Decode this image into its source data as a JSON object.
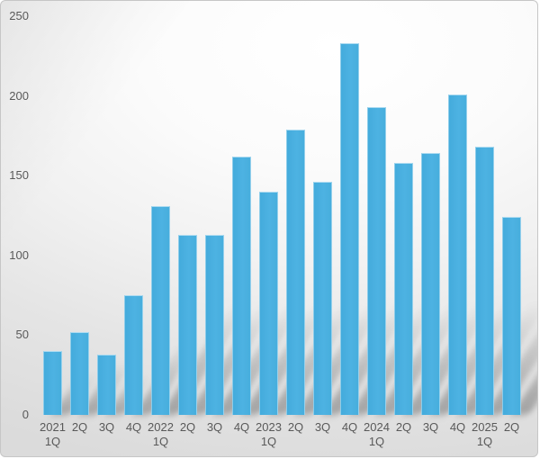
{
  "chart_data": {
    "type": "bar",
    "title": "",
    "xlabel": "",
    "ylabel": "",
    "categories": [
      "2021 1Q",
      "2Q",
      "3Q",
      "4Q",
      "2022 1Q",
      "2Q",
      "3Q",
      "4Q",
      "2023 1Q",
      "2Q",
      "3Q",
      "4Q",
      "2024 1Q",
      "2Q",
      "3Q",
      "4Q",
      "2025 1Q",
      "2Q"
    ],
    "x_tick_lines": [
      [
        "2021",
        "1Q"
      ],
      [
        "2Q"
      ],
      [
        "3Q"
      ],
      [
        "4Q"
      ],
      [
        "2022",
        "1Q"
      ],
      [
        "2Q"
      ],
      [
        "3Q"
      ],
      [
        "4Q"
      ],
      [
        "2023",
        "1Q"
      ],
      [
        "2Q"
      ],
      [
        "3Q"
      ],
      [
        "4Q"
      ],
      [
        "2024",
        "1Q"
      ],
      [
        "2Q"
      ],
      [
        "3Q"
      ],
      [
        "4Q"
      ],
      [
        "2025",
        "1Q"
      ],
      [
        "2Q"
      ]
    ],
    "values": [
      40,
      52,
      38,
      75,
      131,
      113,
      113,
      162,
      140,
      179,
      146,
      233,
      193,
      158,
      164,
      201,
      168,
      124
    ],
    "ylim": [
      0,
      250
    ],
    "yticks": [
      0,
      50,
      100,
      150,
      200,
      250
    ],
    "grid": false,
    "legend": null,
    "bar_color": "#47aedd",
    "bar_edge_color": "#b5ddf1",
    "tick_label_color": "#595959",
    "background_style": "white-to-gray-gradient",
    "bar_shadow_style": "perspective-upper-right"
  }
}
